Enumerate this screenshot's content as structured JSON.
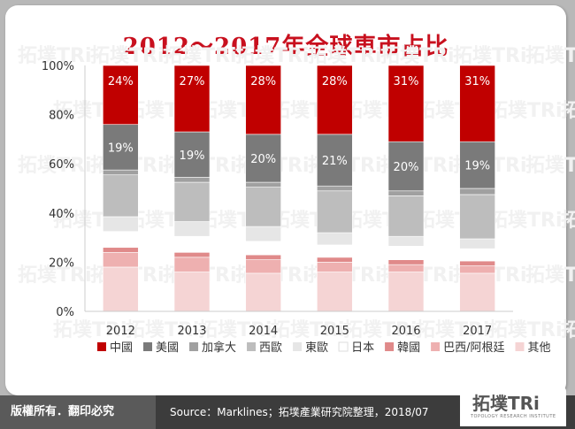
{
  "title": "2012～2017年全球車市占比",
  "footer": {
    "rights": "版權所有．翻印必究",
    "source": "Source：Marklines；拓墣產業研究院整理，2018/07",
    "logo": "拓墣TRi",
    "logo_sub": "TOPOLOGY RESEARCH INSTITUTE"
  },
  "chart_data": {
    "type": "bar",
    "stacked": true,
    "categories": [
      "2012",
      "2013",
      "2014",
      "2015",
      "2016",
      "2017"
    ],
    "y_ticks": [
      "0%",
      "20%",
      "40%",
      "60%",
      "80%",
      "100%"
    ],
    "ylim": [
      0,
      100
    ],
    "legend_position": "bottom",
    "series": [
      {
        "name": "其他",
        "color": "#f5d4d4",
        "values": [
          18,
          16,
          15.5,
          16,
          16,
          15.5
        ]
      },
      {
        "name": "巴西/阿根廷",
        "color": "#eeb0b0",
        "values": [
          6,
          6,
          5.5,
          4,
          3,
          3
        ]
      },
      {
        "name": "韓國",
        "color": "#e08a8a",
        "values": [
          2,
          2,
          2,
          2,
          2,
          2
        ]
      },
      {
        "name": "日本",
        "color": "#ffffff",
        "values": [
          6.5,
          6.5,
          5.5,
          5,
          5.5,
          5
        ]
      },
      {
        "name": "東歐",
        "color": "#e6e6e6",
        "values": [
          6,
          6,
          6,
          5,
          4,
          4
        ]
      },
      {
        "name": "西歐",
        "color": "#bdbdbd",
        "values": [
          17,
          16,
          16,
          17,
          16.5,
          18
        ]
      },
      {
        "name": "加拿大",
        "color": "#a0a0a0",
        "values": [
          2,
          2,
          2,
          2,
          2,
          2.5
        ]
      },
      {
        "name": "美國",
        "color": "#7a7a7a",
        "values": [
          18.5,
          18.5,
          19.5,
          21,
          20,
          19
        ]
      },
      {
        "name": "中國",
        "color": "#c00000",
        "values": [
          24,
          27,
          28,
          28,
          31,
          31
        ]
      }
    ],
    "data_labels": {
      "美國": [
        "19%",
        "19%",
        "20%",
        "21%",
        "20%",
        "19%"
      ],
      "中國": [
        "24%",
        "27%",
        "28%",
        "28%",
        "31%",
        "31%"
      ]
    },
    "legend_order": [
      "中國",
      "美國",
      "加拿大",
      "西歐",
      "東歐",
      "日本",
      "韓國",
      "巴西/阿根廷",
      "其他"
    ]
  }
}
